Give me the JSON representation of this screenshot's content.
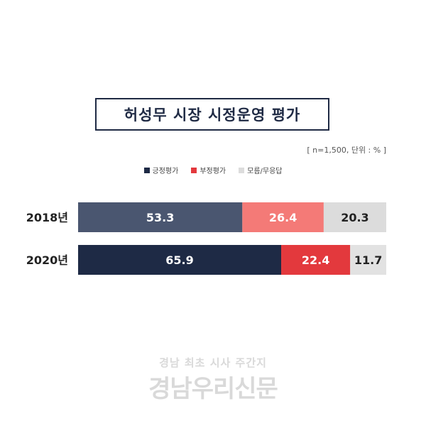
{
  "note": "[ n=1,500, 단위 : % ]",
  "watermark": {
    "tagline": "경남 최초 시사 주간지",
    "name": "경남우리신문"
  },
  "chart_data": {
    "type": "bar",
    "orientation": "horizontal",
    "stacked": true,
    "title": "허성무 시장 시정운영 평가",
    "categories": [
      "2018년",
      "2020년"
    ],
    "series": [
      {
        "name": "긍정평가",
        "values": [
          53.3,
          65.9
        ],
        "colors": [
          "#4a5670",
          "#1e2a45"
        ]
      },
      {
        "name": "부정평가",
        "values": [
          26.4,
          22.4
        ],
        "colors": [
          "#f47a77",
          "#e3393d"
        ]
      },
      {
        "name": "모름/무응답",
        "values": [
          20.3,
          11.7
        ],
        "colors": [
          "#dcdcdc",
          "#e2e2e2"
        ]
      }
    ],
    "legend_colors": [
      "#1e2a45",
      "#e3393d",
      "#dcdcdc"
    ],
    "xlim": [
      0,
      100
    ],
    "legend": "top-center",
    "grid": false
  }
}
